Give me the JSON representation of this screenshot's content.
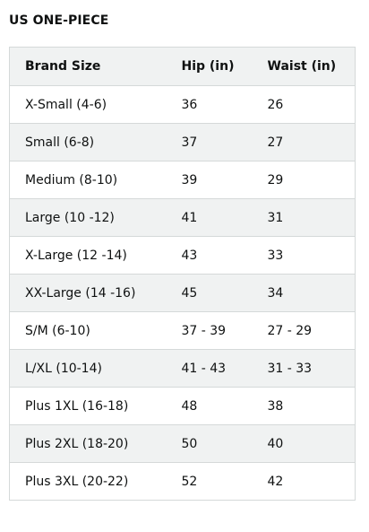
{
  "title": "US ONE-PIECE",
  "table": {
    "headers": [
      "Brand Size",
      "Hip (in)",
      "Waist (in)"
    ],
    "rows": [
      [
        "X-Small (4-6)",
        "36",
        "26"
      ],
      [
        "Small (6-8)",
        "37",
        "27"
      ],
      [
        "Medium (8-10)",
        "39",
        "29"
      ],
      [
        "Large (10 -12)",
        "41",
        "31"
      ],
      [
        "X-Large (12 -14)",
        "43",
        "33"
      ],
      [
        "XX-Large (14 -16)",
        "45",
        "34"
      ],
      [
        "S/M (6-10)",
        "37 - 39",
        "27 - 29"
      ],
      [
        "L/XL (10-14)",
        "41 - 43",
        "31 - 33"
      ],
      [
        "Plus 1XL (16-18)",
        "48",
        "38"
      ],
      [
        "Plus 2XL (18-20)",
        "50",
        "40"
      ],
      [
        "Plus 3XL (20-22)",
        "52",
        "42"
      ]
    ]
  },
  "colors": {
    "border": "#d5d9d9",
    "stripe": "#f0f2f2",
    "text": "#0f1111"
  }
}
